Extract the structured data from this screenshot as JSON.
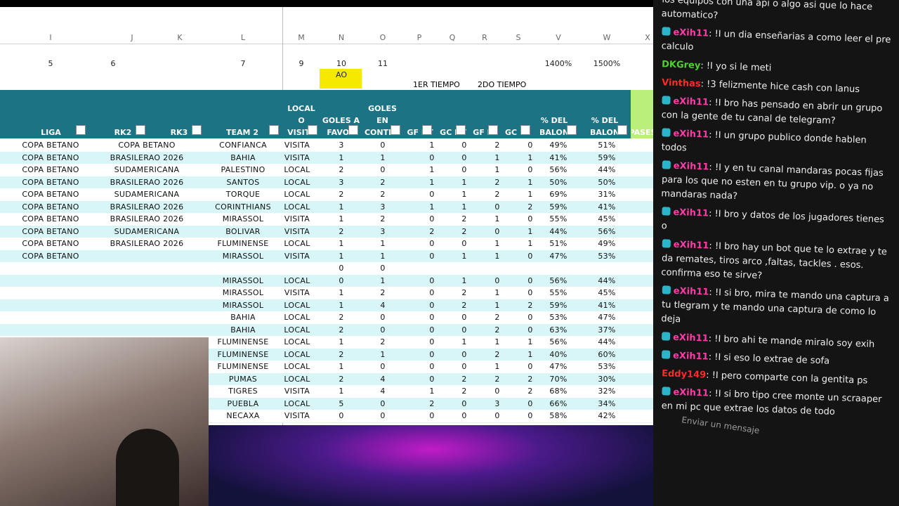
{
  "sheet": {
    "column_letters": [
      "I",
      "J",
      "K",
      "L",
      "M",
      "N",
      "O",
      "P",
      "Q",
      "R",
      "S",
      "V",
      "W",
      "X"
    ],
    "number_row": [
      "5",
      "6",
      "7",
      "9",
      "10",
      "11",
      "1400%",
      "1500%"
    ],
    "ao_label": "AO",
    "first_half": "1ER TIEMPO",
    "second_half": "2DO TIEMPO",
    "headers": [
      "LIGA",
      "RK2",
      "RK3",
      "TEAM 2",
      "LOCAL O VISITA",
      "GOLES A FAVOR",
      "GOLES EN CONTRA",
      "GF HT",
      "GC HT",
      "GF FT",
      "GC FT",
      "% DEL BALON",
      "% DEL BALON",
      "PASES"
    ],
    "rows": [
      [
        "COPA BETANO",
        "COPA BETANO",
        "CONFIANCA",
        "VISITA",
        "3",
        "0",
        "1",
        "0",
        "2",
        "0",
        "49%",
        "51%"
      ],
      [
        "COPA BETANO",
        "BRASILERAO 2026",
        "BAHIA",
        "VISITA",
        "1",
        "1",
        "0",
        "0",
        "1",
        "1",
        "41%",
        "59%"
      ],
      [
        "COPA BETANO",
        "SUDAMERICANA",
        "PALESTINO",
        "LOCAL",
        "2",
        "0",
        "1",
        "0",
        "1",
        "0",
        "56%",
        "44%"
      ],
      [
        "COPA BETANO",
        "BRASILERAO 2026",
        "SANTOS",
        "LOCAL",
        "3",
        "2",
        "1",
        "1",
        "2",
        "1",
        "50%",
        "50%"
      ],
      [
        "COPA BETANO",
        "SUDAMERICANA",
        "TORQUE",
        "LOCAL",
        "2",
        "2",
        "0",
        "1",
        "2",
        "1",
        "69%",
        "31%"
      ],
      [
        "COPA BETANO",
        "BRASILERAO 2026",
        "CORINTHIANS",
        "LOCAL",
        "1",
        "3",
        "1",
        "1",
        "0",
        "2",
        "59%",
        "41%"
      ],
      [
        "COPA BETANO",
        "BRASILERAO 2026",
        "MIRASSOL",
        "VISITA",
        "1",
        "2",
        "0",
        "2",
        "1",
        "0",
        "55%",
        "45%"
      ],
      [
        "COPA BETANO",
        "SUDAMERICANA",
        "BOLIVAR",
        "VISITA",
        "2",
        "3",
        "2",
        "2",
        "0",
        "1",
        "44%",
        "56%"
      ],
      [
        "COPA BETANO",
        "BRASILERAO 2026",
        "FLUMINENSE",
        "LOCAL",
        "1",
        "1",
        "0",
        "0",
        "1",
        "1",
        "51%",
        "49%"
      ],
      [
        "COPA BETANO",
        null,
        "MIRASSOL",
        "VISITA",
        "1",
        "1",
        "0",
        "1",
        "1",
        "0",
        "47%",
        "53%"
      ],
      [
        null,
        null,
        null,
        null,
        "0",
        "0",
        null,
        null,
        null,
        null,
        null,
        null
      ],
      [
        null,
        null,
        "MIRASSOL",
        "LOCAL",
        "0",
        "1",
        "0",
        "1",
        "0",
        "0",
        "56%",
        "44%"
      ],
      [
        null,
        null,
        "MIRASSOL",
        "VISITA",
        "1",
        "2",
        "0",
        "2",
        "1",
        "0",
        "55%",
        "45%"
      ],
      [
        null,
        null,
        "MIRASSOL",
        "LOCAL",
        "1",
        "4",
        "0",
        "2",
        "1",
        "2",
        "59%",
        "41%"
      ],
      [
        null,
        null,
        "BAHIA",
        "LOCAL",
        "2",
        "0",
        "0",
        "0",
        "2",
        "0",
        "53%",
        "47%"
      ],
      [
        null,
        null,
        "BAHIA",
        "LOCAL",
        "2",
        "0",
        "0",
        "0",
        "2",
        "0",
        "63%",
        "37%"
      ],
      [
        null,
        null,
        "FLUMINENSE",
        "LOCAL",
        "1",
        "2",
        "0",
        "1",
        "1",
        "1",
        "56%",
        "44%"
      ],
      [
        null,
        null,
        "FLUMINENSE",
        "LOCAL",
        "2",
        "1",
        "0",
        "0",
        "2",
        "1",
        "40%",
        "60%"
      ],
      [
        null,
        null,
        "FLUMINENSE",
        "LOCAL",
        "1",
        "0",
        "0",
        "0",
        "1",
        "0",
        "47%",
        "53%"
      ],
      [
        null,
        null,
        "PUMAS",
        "LOCAL",
        "2",
        "4",
        "0",
        "2",
        "2",
        "2",
        "70%",
        "30%"
      ],
      [
        null,
        null,
        "TIGRES",
        "VISITA",
        "1",
        "4",
        "1",
        "2",
        "0",
        "2",
        "68%",
        "32%"
      ],
      [
        null,
        null,
        "PUEBLA",
        "LOCAL",
        "5",
        "0",
        "2",
        "0",
        "3",
        "0",
        "66%",
        "34%"
      ],
      [
        null,
        null,
        "NECAXA",
        "VISITA",
        "0",
        "0",
        "0",
        "0",
        "0",
        "0",
        "58%",
        "42%"
      ]
    ]
  },
  "chat": {
    "messages": [
      {
        "user": null,
        "color": null,
        "text": "los equipos con una api o algo asi que lo hace automatico?"
      },
      {
        "user": "eXih11",
        "color": "#ff3ba8",
        "text": "!I un dia enseñarias a como leer el pre calculo"
      },
      {
        "user": "DKGrey",
        "color": "#4cd32b",
        "text": "!I yo si le meti"
      },
      {
        "user": "Vinthas",
        "color": "#ff2a2a",
        "text": "!3 felizmente hice cash con lanus"
      },
      {
        "user": "eXih11",
        "color": "#ff3ba8",
        "text": "!I bro has pensado en abrir un grupo con la gente de tu canal de telegram?"
      },
      {
        "user": "eXih11",
        "color": "#ff3ba8",
        "text": "!I un grupo publico donde hablen todos"
      },
      {
        "user": "eXih11",
        "color": "#ff3ba8",
        "text": "!I y en tu canal mandaras pocas fijas para los que no esten en tu grupo vip. o ya no mandaras nada?"
      },
      {
        "user": "eXih11",
        "color": "#ff3ba8",
        "text": "!I bro y datos de los jugadores tienes o"
      },
      {
        "user": "eXih11",
        "color": "#ff3ba8",
        "text": "!I bro hay un bot que te lo extrae y te da remates, tiros arco ,faltas, tackles . esos. confirma eso te sirve?"
      },
      {
        "user": "eXih11",
        "color": "#ff3ba8",
        "text": "!I si bro, mira te mando una captura a tu tlegram y te mando una captura de como lo deja"
      },
      {
        "user": "eXih11",
        "color": "#ff3ba8",
        "text": "!I bro ahi te mande miralo soy exih"
      },
      {
        "user": "eXih11",
        "color": "#ff3ba8",
        "text": "!I si eso lo extrae de sofa"
      },
      {
        "user": "Eddy149",
        "color": "#ff2a2a",
        "text": "!I pero comparte con la gentita ps"
      },
      {
        "user": "eXih11",
        "color": "#ff3ba8",
        "text": "!I si bro tipo cree monte un scraaper en mi pc que extrae los datos de todo"
      }
    ],
    "input_placeholder": "Enviar un mensaje"
  }
}
